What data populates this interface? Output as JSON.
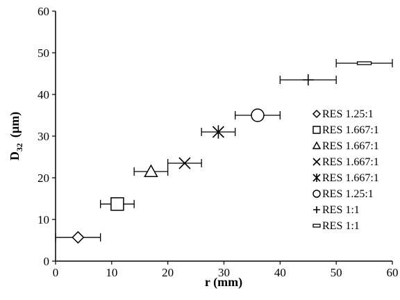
{
  "chart_data": {
    "type": "scatter",
    "title": "",
    "xlabel": "r (mm)",
    "ylabel": {
      "main": "D",
      "sub": "32",
      "rest": "(µm)"
    },
    "xlim": [
      0,
      60
    ],
    "ylim": [
      0,
      60
    ],
    "xticks": [
      0,
      10,
      20,
      30,
      40,
      50,
      60
    ],
    "yticks": [
      0,
      10,
      20,
      30,
      40,
      50,
      60
    ],
    "grid": false,
    "legend_position": "right",
    "series": [
      {
        "name": "RES 1.25:1",
        "marker": "diamond",
        "x": 4,
        "y": 5.7,
        "xerr": 4
      },
      {
        "name": "RES 1.667:1",
        "marker": "square",
        "x": 11,
        "y": 13.7,
        "xerr": 3
      },
      {
        "name": "RES 1.667:1",
        "marker": "triangle",
        "x": 17,
        "y": 21.5,
        "xerr": 3
      },
      {
        "name": "RES 1.667:1",
        "marker": "x",
        "x": 23,
        "y": 23.5,
        "xerr": 3
      },
      {
        "name": "RES 1.667:1",
        "marker": "star",
        "x": 29,
        "y": 31,
        "xerr": 3
      },
      {
        "name": "RES 1.25:1",
        "marker": "circle",
        "x": 36,
        "y": 35,
        "xerr": 4
      },
      {
        "name": "RES 1:1",
        "marker": "plus",
        "x": 45,
        "y": 43.5,
        "xerr": 5
      },
      {
        "name": "RES 1:1",
        "marker": "dash",
        "x": 55,
        "y": 47.5,
        "xerr": 5
      }
    ]
  }
}
